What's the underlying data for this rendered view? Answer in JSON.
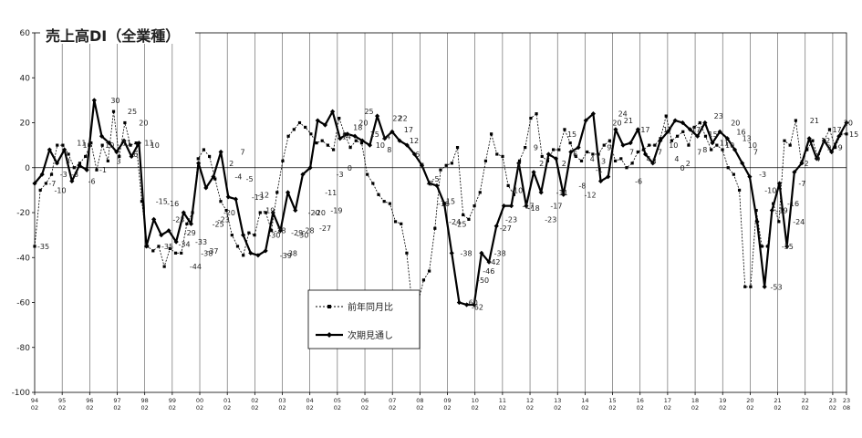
{
  "chart_data": {
    "type": "line",
    "title": "売上高DI（全業種）",
    "xlabel": "",
    "ylabel": "",
    "ylim": [
      -100,
      60
    ],
    "y_ticks": [
      60,
      40,
      20,
      0,
      -20,
      -40,
      -60,
      -80,
      -100
    ],
    "grid": "vertical lines at each year",
    "legend_placement": "center-bottom",
    "x_tick_labels": [
      [
        "94",
        "02"
      ],
      [
        "95",
        "02"
      ],
      [
        "96",
        "02"
      ],
      [
        "97",
        "02"
      ],
      [
        "98",
        "02"
      ],
      [
        "99",
        "02"
      ],
      [
        "00",
        "02"
      ],
      [
        "01",
        "02"
      ],
      [
        "02",
        "02"
      ],
      [
        "03",
        "02"
      ],
      [
        "04",
        "02"
      ],
      [
        "05",
        "02"
      ],
      [
        "06",
        "02"
      ],
      [
        "07",
        "02"
      ],
      [
        "08",
        "02"
      ],
      [
        "09",
        "02"
      ],
      [
        "10",
        "02"
      ],
      [
        "11",
        "02"
      ],
      [
        "12",
        "02"
      ],
      [
        "13",
        "02"
      ],
      [
        "14",
        "02"
      ],
      [
        "15",
        "02"
      ],
      [
        "16",
        "02"
      ],
      [
        "17",
        "02"
      ],
      [
        "18",
        "02"
      ],
      [
        "19",
        "02"
      ],
      [
        "20",
        "02"
      ],
      [
        "21",
        "02"
      ],
      [
        "22",
        "02"
      ],
      [
        "23",
        "02"
      ],
      [
        "23",
        "08"
      ]
    ],
    "series": [
      {
        "name": "前年同月比",
        "style": "dashed-square",
        "color": "#000000",
        "values": [
          -35,
          -10,
          -7,
          -3,
          10,
          10,
          6,
          0,
          2,
          5,
          11,
          -1,
          10,
          3,
          25,
          5,
          20,
          10,
          11,
          -15,
          -35,
          -37,
          -35,
          -44,
          -36,
          -38,
          -38,
          -25,
          -20,
          4,
          8,
          5,
          -5,
          -15,
          -19,
          -30,
          -35,
          -39,
          -29,
          -30,
          -20,
          -20,
          -28,
          -11,
          3,
          14,
          17,
          20,
          18,
          15,
          11,
          12,
          10,
          8,
          22,
          15,
          9,
          12,
          11,
          -3,
          -7,
          -12,
          -15,
          -16,
          -24,
          -25,
          -38,
          -62,
          -60,
          -50,
          -46,
          -27,
          -1,
          1,
          2,
          9,
          -21,
          -23,
          -17,
          -11,
          3,
          15,
          6,
          5,
          -8,
          -12,
          3,
          9,
          22,
          24,
          5,
          3,
          8,
          8,
          17,
          11,
          5,
          3,
          7,
          6,
          6,
          10,
          12,
          3,
          4,
          0,
          2,
          7,
          8,
          10,
          10,
          13,
          23,
          12,
          14,
          16,
          10,
          18,
          20,
          14,
          8,
          10,
          8,
          0,
          -3,
          -10,
          -53,
          -53,
          -19,
          -35,
          -35,
          -16,
          -24,
          12,
          10,
          21,
          2,
          8,
          12,
          4,
          12,
          17,
          9,
          15,
          15
        ],
        "data_labels": [
          [
            0,
            "-35"
          ],
          [
            2,
            "-7"
          ],
          [
            3,
            "-10"
          ],
          [
            4,
            "-3"
          ],
          [
            5,
            "3"
          ],
          [
            6,
            "-3"
          ],
          [
            7,
            "11"
          ],
          [
            8,
            "10"
          ],
          [
            9,
            "-6"
          ],
          [
            11,
            "-1"
          ],
          [
            12,
            "10"
          ],
          [
            13,
            "30"
          ],
          [
            14,
            "3"
          ],
          [
            15,
            "11"
          ],
          [
            16,
            "25"
          ],
          [
            17,
            "6"
          ],
          [
            18,
            "20"
          ],
          [
            19,
            "11"
          ],
          [
            20,
            "10"
          ],
          [
            21,
            "-15"
          ],
          [
            22,
            "-35"
          ],
          [
            23,
            "-16"
          ],
          [
            24,
            "-23"
          ],
          [
            25,
            "-34"
          ],
          [
            26,
            "-29"
          ],
          [
            27,
            "-44"
          ],
          [
            28,
            "-33"
          ],
          [
            29,
            "-38"
          ],
          [
            30,
            "-37"
          ],
          [
            31,
            "-25"
          ],
          [
            32,
            "-23"
          ],
          [
            33,
            "-20"
          ],
          [
            34,
            "2"
          ],
          [
            35,
            "-4"
          ],
          [
            36,
            "7"
          ],
          [
            37,
            "-5"
          ],
          [
            38,
            "-13"
          ],
          [
            39,
            "-12"
          ],
          [
            40,
            "-19"
          ],
          [
            41,
            "-30"
          ],
          [
            42,
            "-28"
          ],
          [
            43,
            "-39"
          ],
          [
            44,
            "-38"
          ],
          [
            45,
            "-29"
          ],
          [
            46,
            "-30"
          ],
          [
            47,
            "-28"
          ],
          [
            48,
            "-20"
          ],
          [
            49,
            "-20"
          ],
          [
            50,
            "-27"
          ],
          [
            51,
            "-11"
          ],
          [
            52,
            "-19"
          ],
          [
            53,
            "-3"
          ],
          [
            54,
            "14"
          ],
          [
            55,
            "0"
          ],
          [
            56,
            "18"
          ],
          [
            57,
            "20"
          ],
          [
            58,
            "25"
          ],
          [
            59,
            "15"
          ],
          [
            60,
            "10"
          ],
          [
            61,
            "14"
          ],
          [
            62,
            "8"
          ],
          [
            63,
            "22"
          ],
          [
            64,
            "22"
          ],
          [
            65,
            "17"
          ],
          [
            66,
            "12"
          ],
          [
            67,
            "6"
          ],
          [
            68,
            "1"
          ],
          [
            69,
            "-7"
          ],
          [
            70,
            "-5"
          ],
          [
            71,
            "-16"
          ],
          [
            72,
            "-15"
          ],
          [
            73,
            "-24"
          ],
          [
            74,
            "-25"
          ],
          [
            75,
            "-38"
          ],
          [
            76,
            "-60"
          ],
          [
            77,
            "-62"
          ],
          [
            78,
            "-50"
          ],
          [
            79,
            "-46"
          ],
          [
            80,
            "-42"
          ],
          [
            81,
            "-38"
          ],
          [
            82,
            "-27"
          ],
          [
            83,
            "-23"
          ],
          [
            84,
            "-10"
          ],
          [
            85,
            "1"
          ],
          [
            86,
            "-17"
          ],
          [
            87,
            "-18"
          ],
          [
            88,
            "9"
          ],
          [
            89,
            "2"
          ],
          [
            90,
            "-23"
          ],
          [
            91,
            "-17"
          ],
          [
            92,
            "-11"
          ],
          [
            93,
            "2"
          ],
          [
            94,
            "15"
          ],
          [
            95,
            "6"
          ],
          [
            96,
            "-8"
          ],
          [
            97,
            "-12"
          ],
          [
            98,
            "4"
          ],
          [
            99,
            "-1"
          ],
          [
            100,
            "3"
          ],
          [
            101,
            "9"
          ],
          [
            102,
            "20"
          ],
          [
            103,
            "24"
          ],
          [
            104,
            "21"
          ],
          [
            105,
            "7"
          ],
          [
            106,
            "-6"
          ],
          [
            107,
            "17"
          ],
          [
            108,
            "4"
          ],
          [
            109,
            "3"
          ],
          [
            110,
            "7"
          ],
          [
            111,
            "17"
          ],
          [
            112,
            "10"
          ],
          [
            113,
            "4"
          ],
          [
            114,
            "0"
          ],
          [
            115,
            "2"
          ],
          [
            116,
            "17"
          ],
          [
            117,
            "7"
          ],
          [
            118,
            "8"
          ],
          [
            119,
            "15"
          ],
          [
            120,
            "23"
          ],
          [
            121,
            "11"
          ],
          [
            122,
            "10"
          ],
          [
            123,
            "20"
          ],
          [
            124,
            "16"
          ],
          [
            125,
            "13"
          ],
          [
            126,
            "10"
          ],
          [
            127,
            "7"
          ],
          [
            128,
            "-3"
          ],
          [
            129,
            "-10"
          ],
          [
            130,
            "-53"
          ],
          [
            131,
            "-19"
          ],
          [
            132,
            "-35"
          ],
          [
            133,
            "-16"
          ],
          [
            134,
            "-24"
          ],
          [
            135,
            "-7"
          ],
          [
            136,
            "2"
          ],
          [
            137,
            "21"
          ],
          [
            138,
            "4"
          ],
          [
            139,
            "12"
          ],
          [
            140,
            "9"
          ],
          [
            141,
            "17"
          ],
          [
            142,
            "9"
          ],
          [
            143,
            "20"
          ],
          [
            144,
            "15"
          ]
        ]
      },
      {
        "name": "次期見通し",
        "style": "bold-diamond",
        "color": "#000000",
        "values": [
          -7,
          -3,
          8,
          2,
          8,
          -6,
          1,
          -1,
          30,
          14,
          11,
          7,
          12,
          5,
          11,
          -35,
          -23,
          -30,
          -28,
          -33,
          -20,
          -25,
          2,
          -9,
          -4,
          7,
          -13,
          -14,
          -30,
          -38,
          -39,
          -37,
          -20,
          -28,
          -11,
          -19,
          -3,
          0,
          21,
          19,
          25,
          13,
          15,
          14,
          12,
          10,
          23,
          13,
          16,
          12,
          10,
          6,
          1,
          -7,
          -8,
          -16,
          -38,
          -60,
          -61,
          -61,
          -38,
          -42,
          -26,
          -17,
          -17,
          2,
          -17,
          -2,
          -11,
          6,
          4,
          -12,
          7,
          9,
          21,
          24,
          -6,
          -4,
          17,
          10,
          11,
          17,
          6,
          2,
          12,
          16,
          21,
          20,
          17,
          14,
          20,
          11,
          16,
          13,
          8,
          2,
          -4,
          -24,
          -53,
          -19,
          -7,
          -35,
          -2,
          2,
          13,
          4,
          12,
          7,
          14,
          20
        ]
      }
    ]
  }
}
